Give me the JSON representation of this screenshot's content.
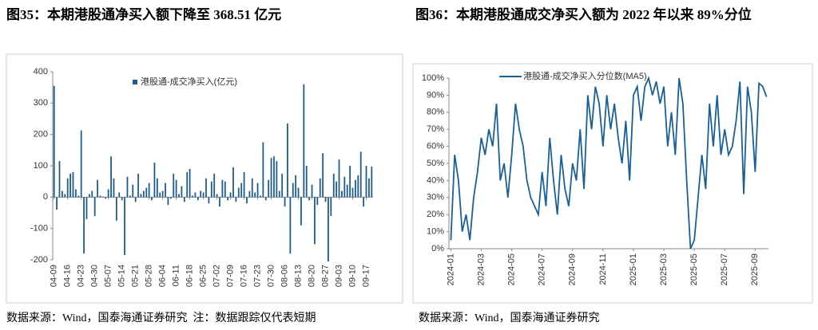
{
  "chart_data": [
    {
      "type": "bar",
      "title": "图35：本期港股通净买入额下降至 368.51 亿元",
      "source": "数据来源：Wind，国泰海通证券研究  注：数据跟踪仅代表短期",
      "categories": [
        "04-09",
        null,
        null,
        null,
        null,
        "04-16",
        null,
        null,
        null,
        null,
        "04-23",
        null,
        null,
        null,
        null,
        "04-30",
        null,
        null,
        null,
        null,
        "05-07",
        null,
        null,
        null,
        null,
        "05-14",
        null,
        null,
        null,
        null,
        "05-21",
        null,
        null,
        null,
        null,
        "05-28",
        null,
        null,
        null,
        null,
        "06-04",
        null,
        null,
        null,
        null,
        "06-11",
        null,
        null,
        null,
        null,
        "06-18",
        null,
        null,
        null,
        null,
        "06-25",
        null,
        null,
        null,
        null,
        "07-02",
        null,
        null,
        null,
        null,
        "07-09",
        null,
        null,
        null,
        null,
        "07-16",
        null,
        null,
        null,
        null,
        "07-23",
        null,
        null,
        null,
        null,
        "07-30",
        null,
        null,
        null,
        null,
        "08-06",
        null,
        null,
        null,
        null,
        "08-13",
        null,
        null,
        null,
        null,
        "08-20",
        null,
        null,
        null,
        null,
        "08-27",
        null,
        null,
        null,
        null,
        "09-03",
        null,
        null,
        null,
        null,
        "09-10",
        null,
        null,
        null,
        null,
        "09-17",
        null,
        null
      ],
      "series": [
        {
          "name": "港股通-成交净买入(亿元)",
          "color": "#1f5b8e",
          "values": [
            355,
            -40,
            115,
            20,
            10,
            60,
            75,
            80,
            25,
            5,
            213,
            -180,
            -70,
            10,
            20,
            -60,
            55,
            5,
            2,
            -5,
            25,
            130,
            60,
            -75,
            15,
            -10,
            -185,
            65,
            5,
            40,
            -15,
            75,
            10,
            20,
            30,
            45,
            -10,
            110,
            60,
            15,
            20,
            45,
            -25,
            -5,
            75,
            55,
            10,
            35,
            -15,
            80,
            90,
            5,
            15,
            -10,
            20,
            15,
            60,
            -20,
            50,
            75,
            10,
            -30,
            55,
            50,
            -10,
            15,
            95,
            -15,
            30,
            45,
            80,
            -20,
            20,
            60,
            15,
            45,
            5,
            175,
            -10,
            55,
            125,
            130,
            115,
            20,
            75,
            -30,
            235,
            -180,
            45,
            70,
            30,
            -90,
            360,
            100,
            -10,
            40,
            -150,
            -25,
            60,
            140,
            -15,
            -205,
            -60,
            75,
            50,
            120,
            20,
            65,
            40,
            100,
            30,
            55,
            70,
            145,
            -30,
            100,
            60,
            97
          ]
        }
      ],
      "ylim": [
        -200,
        400
      ],
      "yticks": [
        -200,
        -100,
        0,
        100,
        200,
        300,
        400
      ]
    },
    {
      "type": "line",
      "title": "图36：本期港股通成交净买入额为 2022 年以来 89%分位",
      "source": "数据来源：Wind，国泰海通证券研究",
      "categories": [
        "2024-01",
        null,
        null,
        null,
        null,
        null,
        null,
        null,
        "2024-03",
        null,
        null,
        null,
        null,
        null,
        null,
        null,
        "2024-05",
        null,
        null,
        null,
        null,
        null,
        null,
        null,
        "2024-07",
        null,
        null,
        null,
        null,
        null,
        null,
        null,
        "2024-09",
        null,
        null,
        null,
        null,
        null,
        null,
        null,
        "2024-11",
        null,
        null,
        null,
        null,
        null,
        null,
        null,
        "2025-01",
        null,
        null,
        null,
        null,
        null,
        null,
        null,
        "2025-03",
        null,
        null,
        null,
        null,
        null,
        null,
        null,
        "2025-05",
        null,
        null,
        null,
        null,
        null,
        null,
        null,
        "2025-07",
        null,
        null,
        null,
        null,
        null,
        null,
        null,
        "2025-09",
        null,
        null,
        null
      ],
      "series": [
        {
          "name": "港股通-成交净买入分位数(MA5)",
          "color": "#1a5f96",
          "values": [
            5,
            55,
            40,
            10,
            20,
            5,
            30,
            45,
            65,
            55,
            70,
            60,
            85,
            40,
            50,
            30,
            55,
            85,
            70,
            60,
            40,
            30,
            25,
            20,
            45,
            25,
            65,
            40,
            20,
            55,
            35,
            25,
            50,
            40,
            70,
            35,
            90,
            70,
            95,
            85,
            60,
            90,
            70,
            85,
            65,
            50,
            75,
            40,
            90,
            95,
            75,
            95,
            100,
            90,
            98,
            85,
            95,
            60,
            80,
            55,
            100,
            85,
            40,
            0,
            5,
            30,
            55,
            35,
            85,
            60,
            90,
            55,
            70,
            55,
            60,
            75,
            98,
            32,
            95,
            80,
            45,
            97,
            95,
            89
          ]
        }
      ],
      "ylim": [
        0,
        100
      ],
      "yticks": [
        {
          "value": 0,
          "label": "0%"
        },
        {
          "value": 10,
          "label": "10%"
        },
        {
          "value": 20,
          "label": "20%"
        },
        {
          "value": 30,
          "label": "30%"
        },
        {
          "value": 40,
          "label": "40%"
        },
        {
          "value": 50,
          "label": "50%"
        },
        {
          "value": 60,
          "label": "60%"
        },
        {
          "value": 70,
          "label": "70%"
        },
        {
          "value": 80,
          "label": "80%"
        },
        {
          "value": 90,
          "label": "90%"
        },
        {
          "value": 100,
          "label": "100%"
        }
      ]
    }
  ]
}
